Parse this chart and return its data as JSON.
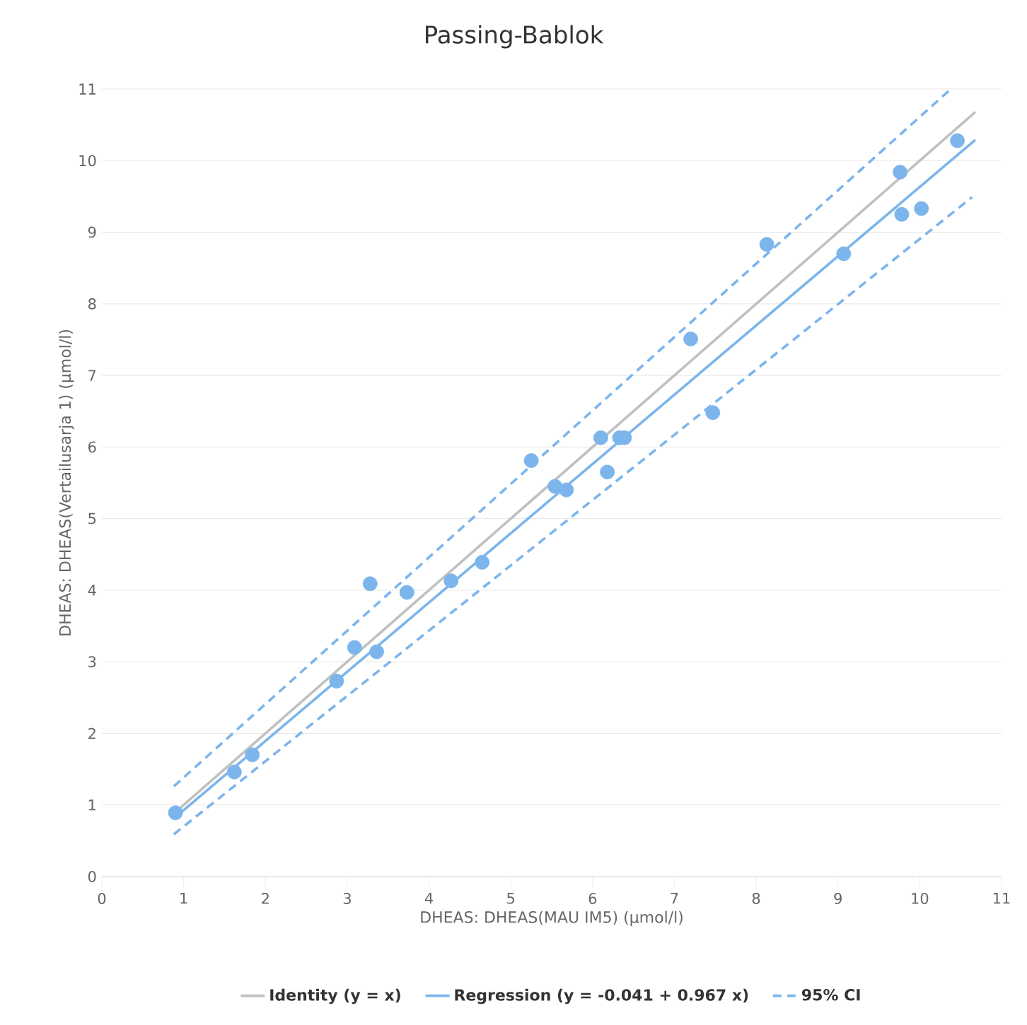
{
  "chart_data": {
    "type": "scatter",
    "title": "Passing-Bablok",
    "xlabel": "DHEAS: DHEAS(MAU IM5) (µmol/l)",
    "ylabel": "DHEAS: DHEAS(Vertailusarja 1) (µmol/l)",
    "xlim": [
      0,
      11
    ],
    "ylim": [
      0,
      11
    ],
    "xticks": [
      0,
      1,
      2,
      3,
      4,
      5,
      6,
      7,
      8,
      9,
      10,
      11
    ],
    "yticks": [
      0,
      1,
      2,
      3,
      4,
      5,
      6,
      7,
      8,
      9,
      10,
      11
    ],
    "grid": "y",
    "legend": "bottom",
    "series": [
      {
        "type": "line",
        "name": "Identity (y = x)",
        "color": "#c0c0c0",
        "marker": "none",
        "line_style": "solid",
        "x": [
          0.88,
          10.68
        ],
        "values": [
          0.88,
          10.68
        ]
      },
      {
        "type": "line",
        "name": "Regression (y = -0.041 + 0.967 x)",
        "color": "#7cb5ec",
        "marker": "none",
        "line_style": "solid",
        "x": [
          0.88,
          10.68
        ],
        "values": [
          0.81,
          10.29
        ]
      },
      {
        "type": "line",
        "name": "95% CI",
        "color": "#7cb5ec",
        "marker": "none",
        "line_style": "dashed",
        "x": [
          0.88,
          10.37
        ],
        "values": [
          1.26,
          10.99
        ]
      },
      {
        "type": "line",
        "color": "#7cb5ec",
        "marker": "none",
        "line_style": "dashed",
        "x": [
          0.88,
          10.64
        ],
        "values": [
          0.59,
          9.49
        ]
      },
      {
        "type": "scatter",
        "color": "#7cb5ec",
        "marker": "circle",
        "x": [
          0.9,
          1.62,
          1.84,
          2.87,
          3.09,
          3.28,
          3.36,
          3.73,
          4.27,
          4.65,
          5.25,
          5.54,
          5.68,
          6.1,
          6.18,
          6.33,
          6.39,
          7.2,
          7.47,
          8.13,
          9.07,
          9.76,
          9.78,
          10.02,
          10.46
        ],
        "values": [
          0.89,
          1.46,
          1.7,
          2.73,
          3.2,
          4.09,
          3.14,
          3.97,
          4.13,
          4.39,
          5.81,
          5.45,
          5.4,
          6.13,
          5.65,
          6.13,
          6.13,
          7.51,
          6.48,
          8.83,
          8.7,
          9.84,
          9.25,
          9.33,
          10.28
        ]
      }
    ]
  }
}
